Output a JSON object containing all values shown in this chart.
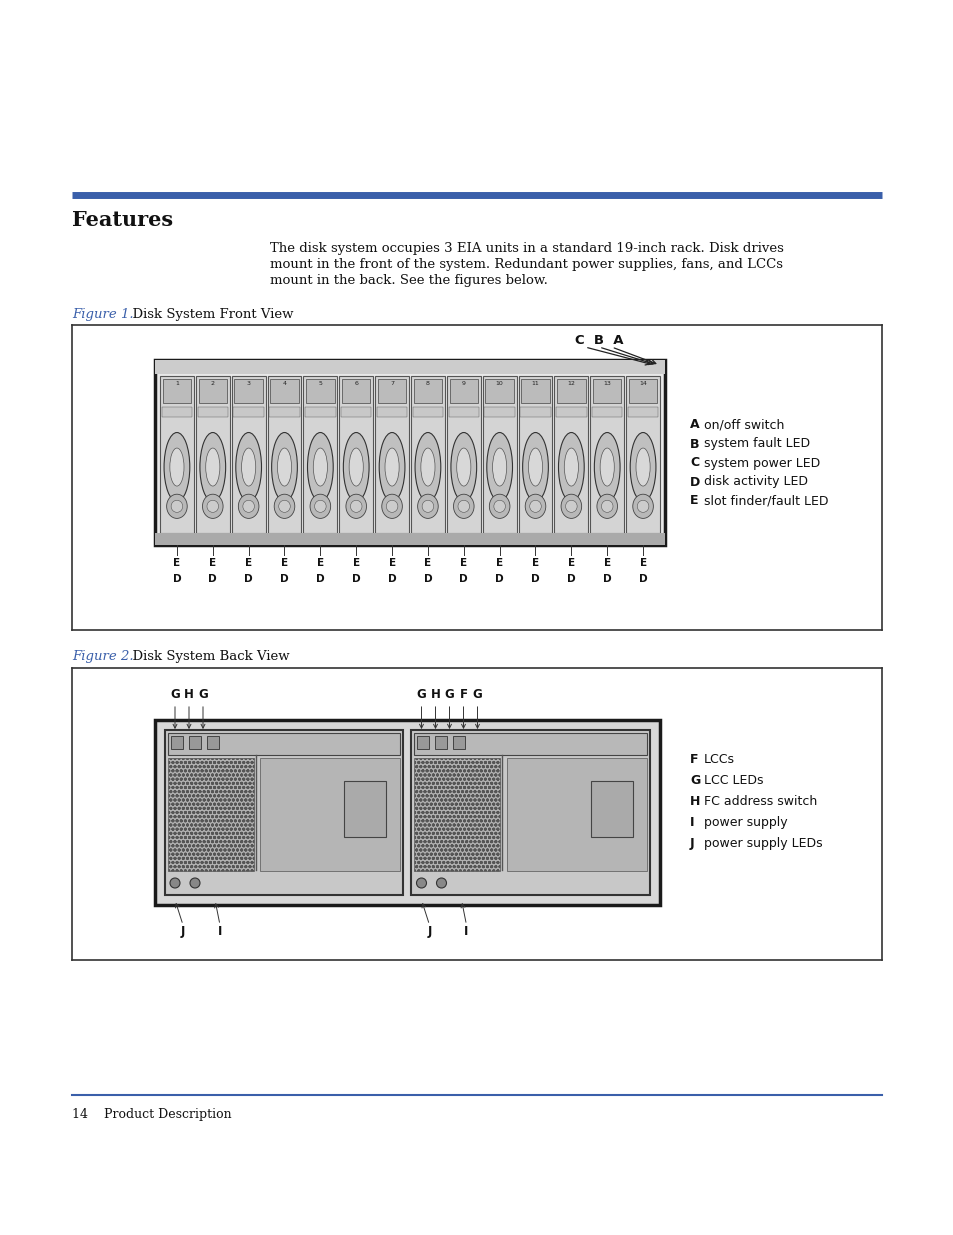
{
  "page_bg": "#ffffff",
  "blue_line_color": "#3a5faa",
  "title": "Features",
  "title_fontsize": 15,
  "body_text": "The disk system occupies 3 EIA units in a standard 19-inch rack. Disk drives\nmount in the front of the system. Redundant power supplies, fans, and LCCs\nmount in the back. See the figures below.",
  "fig1_label": "Figure 1.",
  "fig1_title": "  Disk System Front View",
  "fig2_label": "Figure 2.",
  "fig2_title": "  Disk System Back View",
  "footer_text": "14    Product Description",
  "dark_color": "#111111",
  "figure_color": "#3a5faa",
  "fig1_legend": [
    [
      "A",
      "on/off switch"
    ],
    [
      "B",
      "system fault LED"
    ],
    [
      "C",
      "system power LED"
    ],
    [
      "D",
      "disk activity LED"
    ],
    [
      "E",
      "slot finder/fault LED"
    ]
  ],
  "fig2_legend": [
    [
      "F",
      "LCCs"
    ],
    [
      "G",
      "LCC LEDs"
    ],
    [
      "H",
      "FC address switch"
    ],
    [
      "I",
      "power supply"
    ],
    [
      "J",
      "power supply LEDs"
    ]
  ]
}
